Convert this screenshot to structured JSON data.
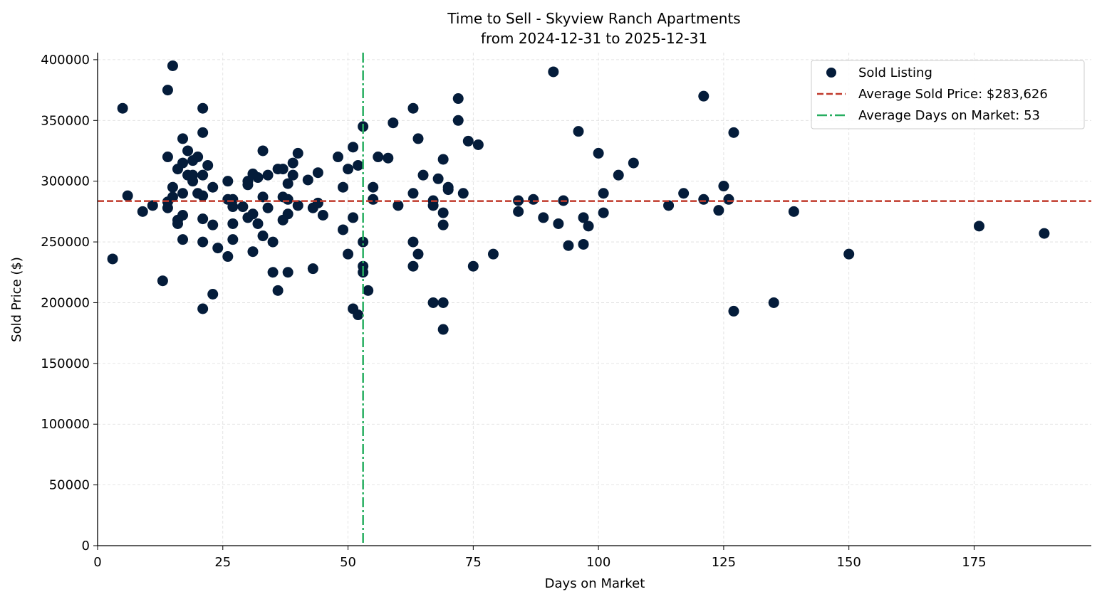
{
  "chart_data": {
    "type": "scatter",
    "title": "Time to Sell - Skyview Ranch Apartments",
    "subtitle": "from 2024-12-31 to 2025-12-31",
    "xlabel": "Days on Market",
    "ylabel": "Sold Price ($)",
    "xlim": [
      0,
      198.4
    ],
    "ylim": [
      0,
      405800
    ],
    "xticks": [
      0,
      25,
      50,
      75,
      100,
      125,
      150,
      175
    ],
    "yticks": [
      0,
      50000,
      100000,
      150000,
      200000,
      250000,
      300000,
      350000,
      400000
    ],
    "grid": true,
    "legend_placement": "top-right",
    "colors": {
      "points": "#041c3a",
      "avg_price": "#c0392b",
      "avg_days": "#27ae60"
    },
    "legend": [
      "Sold Listing",
      "Average Sold Price: $283,626",
      "Average Days on Market: 53"
    ],
    "average_sold_price": 283626,
    "average_days_on_market": 53,
    "series": [
      {
        "name": "Sold Listing",
        "points": [
          [
            3,
            236000
          ],
          [
            5,
            360000
          ],
          [
            6,
            288000
          ],
          [
            9,
            275000
          ],
          [
            11,
            280000
          ],
          [
            13,
            218000
          ],
          [
            14,
            375000
          ],
          [
            14,
            320000
          ],
          [
            14,
            278000
          ],
          [
            14,
            283000
          ],
          [
            15,
            395000
          ],
          [
            15,
            295000
          ],
          [
            15,
            287000
          ],
          [
            16,
            268000
          ],
          [
            16,
            265000
          ],
          [
            16,
            310000
          ],
          [
            17,
            335000
          ],
          [
            17,
            315000
          ],
          [
            17,
            290000
          ],
          [
            17,
            272000
          ],
          [
            17,
            252000
          ],
          [
            18,
            325000
          ],
          [
            18,
            305000
          ],
          [
            19,
            317000
          ],
          [
            19,
            305000
          ],
          [
            19,
            300000
          ],
          [
            20,
            320000
          ],
          [
            20,
            290000
          ],
          [
            21,
            360000
          ],
          [
            21,
            340000
          ],
          [
            21,
            305000
          ],
          [
            21,
            288000
          ],
          [
            21,
            269000
          ],
          [
            21,
            250000
          ],
          [
            21,
            195000
          ],
          [
            22,
            313000
          ],
          [
            23,
            295000
          ],
          [
            23,
            264000
          ],
          [
            23,
            207000
          ],
          [
            24,
            245000
          ],
          [
            26,
            300000
          ],
          [
            26,
            285000
          ],
          [
            26,
            238000
          ],
          [
            27,
            285000
          ],
          [
            27,
            279000
          ],
          [
            27,
            265000
          ],
          [
            27,
            252000
          ],
          [
            29,
            279000
          ],
          [
            30,
            300000
          ],
          [
            30,
            297000
          ],
          [
            30,
            270000
          ],
          [
            31,
            306000
          ],
          [
            31,
            273000
          ],
          [
            31,
            242000
          ],
          [
            32,
            303000
          ],
          [
            32,
            265000
          ],
          [
            33,
            325000
          ],
          [
            33,
            287000
          ],
          [
            33,
            255000
          ],
          [
            34,
            305000
          ],
          [
            34,
            278000
          ],
          [
            35,
            250000
          ],
          [
            35,
            225000
          ],
          [
            36,
            310000
          ],
          [
            36,
            210000
          ],
          [
            37,
            310000
          ],
          [
            37,
            287000
          ],
          [
            37,
            268000
          ],
          [
            38,
            298000
          ],
          [
            38,
            285000
          ],
          [
            38,
            273000
          ],
          [
            38,
            225000
          ],
          [
            39,
            315000
          ],
          [
            39,
            305000
          ],
          [
            40,
            323000
          ],
          [
            40,
            280000
          ],
          [
            42,
            301000
          ],
          [
            43,
            278000
          ],
          [
            43,
            228000
          ],
          [
            44,
            307000
          ],
          [
            44,
            282000
          ],
          [
            45,
            272000
          ],
          [
            48,
            320000
          ],
          [
            49,
            295000
          ],
          [
            49,
            260000
          ],
          [
            50,
            310000
          ],
          [
            50,
            240000
          ],
          [
            51,
            328000
          ],
          [
            51,
            270000
          ],
          [
            51,
            195000
          ],
          [
            52,
            313000
          ],
          [
            52,
            190000
          ],
          [
            53,
            345000
          ],
          [
            53,
            250000
          ],
          [
            53,
            230000
          ],
          [
            53,
            225000
          ],
          [
            54,
            210000
          ],
          [
            55,
            295000
          ],
          [
            55,
            285000
          ],
          [
            56,
            320000
          ],
          [
            58,
            319000
          ],
          [
            59,
            348000
          ],
          [
            60,
            280000
          ],
          [
            63,
            360000
          ],
          [
            63,
            290000
          ],
          [
            63,
            250000
          ],
          [
            63,
            230000
          ],
          [
            64,
            335000
          ],
          [
            64,
            240000
          ],
          [
            65,
            305000
          ],
          [
            67,
            200000
          ],
          [
            67,
            284000
          ],
          [
            67,
            280000
          ],
          [
            68,
            302000
          ],
          [
            69,
            318000
          ],
          [
            69,
            274000
          ],
          [
            69,
            264000
          ],
          [
            69,
            200000
          ],
          [
            69,
            178000
          ],
          [
            70,
            295000
          ],
          [
            70,
            293000
          ],
          [
            72,
            368000
          ],
          [
            72,
            350000
          ],
          [
            73,
            290000
          ],
          [
            74,
            333000
          ],
          [
            75,
            230000
          ],
          [
            76,
            330000
          ],
          [
            79,
            240000
          ],
          [
            84,
            284000
          ],
          [
            84,
            275000
          ],
          [
            87,
            285000
          ],
          [
            89,
            270000
          ],
          [
            91,
            390000
          ],
          [
            92,
            265000
          ],
          [
            93,
            284000
          ],
          [
            94,
            247000
          ],
          [
            96,
            341000
          ],
          [
            97,
            270000
          ],
          [
            97,
            248000
          ],
          [
            98,
            263000
          ],
          [
            100,
            323000
          ],
          [
            101,
            290000
          ],
          [
            101,
            274000
          ],
          [
            104,
            305000
          ],
          [
            107,
            315000
          ],
          [
            114,
            280000
          ],
          [
            117,
            290000
          ],
          [
            121,
            370000
          ],
          [
            121,
            285000
          ],
          [
            124,
            276000
          ],
          [
            125,
            296000
          ],
          [
            126,
            285000
          ],
          [
            127,
            340000
          ],
          [
            127,
            193000
          ],
          [
            135,
            200000
          ],
          [
            139,
            275000
          ],
          [
            150,
            240000
          ],
          [
            176,
            263000
          ],
          [
            189,
            257000
          ]
        ]
      }
    ]
  }
}
